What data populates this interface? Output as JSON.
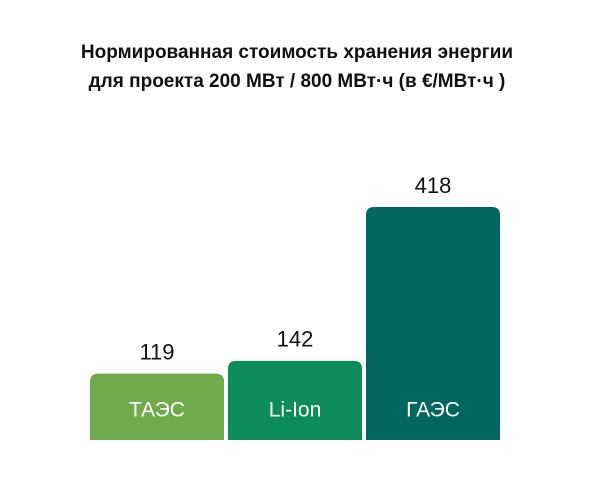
{
  "chart_data": {
    "type": "bar",
    "title": [
      "Нормированная стоимость хранения энергии",
      "для проекта 200 МВт / 800 МВт·ч (в €/МВт·ч )"
    ],
    "categories": [
      "ТАЭС",
      "Li-Ion",
      "ГАЭС"
    ],
    "values": [
      119,
      142,
      418
    ],
    "colors": [
      "#72ab4c",
      "#0b8c5a",
      "#00665e"
    ]
  }
}
